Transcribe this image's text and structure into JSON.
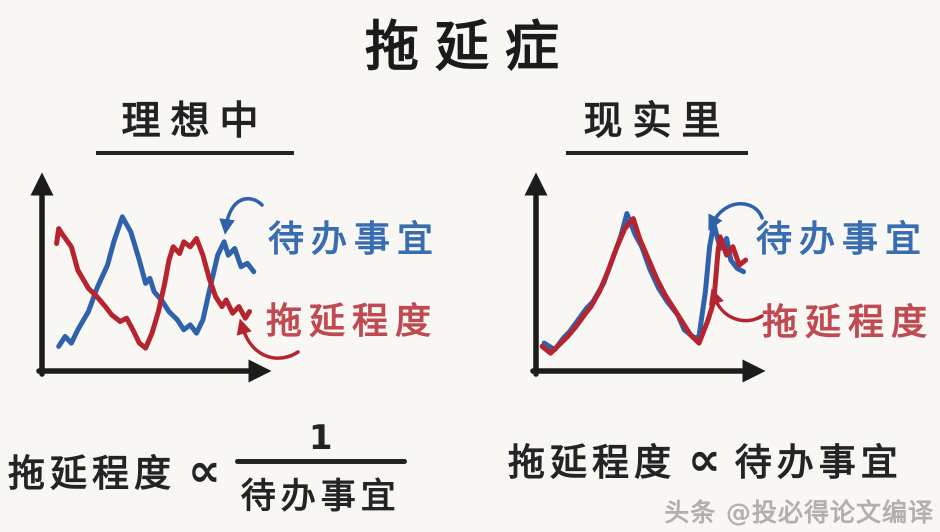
{
  "title": "拖延症",
  "panels": [
    {
      "heading": "理想中",
      "todo_label": "待办事宜",
      "delay_label": "拖延程度"
    },
    {
      "heading": "现实里",
      "todo_label": "待办事宜",
      "delay_label": "拖延程度"
    }
  ],
  "formulas": {
    "ideal": {
      "lhs": "拖延程度",
      "prop": "∝",
      "numerator": "1",
      "denominator": "待办事宜"
    },
    "reality": {
      "lhs": "拖延程度",
      "prop": "∝",
      "rhs": "待办事宜"
    }
  },
  "watermark": "头条 @投必得论文编译",
  "colors": {
    "todo_blue": "#2f62ab",
    "delay_red": "#b5242f",
    "todo_label_blue": "#3a6cb0",
    "delay_label_red": "#c04a52",
    "axis_black": "#1c1c1c",
    "background": "#f8f7f4",
    "watermark_gray": "#b3b0ab"
  },
  "chart_data": [
    {
      "type": "line",
      "title": "理想中",
      "xlabel": "",
      "ylabel": "",
      "axis_range": {
        "x": [
          0,
          100
        ],
        "y": [
          0,
          100
        ]
      },
      "grid": false,
      "legend_position": "right-annotations",
      "relationship": "inverse: 待办事宜 high when 拖延程度 low",
      "series": [
        {
          "name": "待办事宜",
          "color": "#2f62ab",
          "x": [
            6,
            9,
            12,
            15,
            20,
            24,
            29,
            32,
            36,
            40,
            44,
            47,
            49,
            51,
            55,
            58,
            62,
            65,
            68,
            71,
            74,
            77,
            81,
            84,
            86,
            89,
            92,
            95,
            98
          ],
          "y": [
            13,
            19,
            15,
            23,
            34,
            48,
            62,
            76,
            91,
            82,
            65,
            51,
            54,
            46,
            40,
            34,
            29,
            23,
            26,
            21,
            29,
            46,
            68,
            76,
            68,
            72,
            61,
            63,
            58
          ]
        },
        {
          "name": "拖延程度",
          "color": "#b5242f",
          "x": [
            5,
            6,
            8,
            12,
            15,
            20,
            24,
            28,
            31,
            35,
            38,
            41,
            44,
            47,
            50,
            53,
            56,
            58,
            60,
            63,
            65,
            68,
            71,
            74,
            77,
            80,
            83,
            85,
            88,
            91,
            94,
            96
          ],
          "y": [
            75,
            84,
            80,
            73,
            59,
            48,
            43,
            37,
            32,
            28,
            30,
            23,
            15,
            12,
            21,
            34,
            51,
            65,
            73,
            69,
            76,
            73,
            78,
            68,
            54,
            43,
            37,
            41,
            33,
            37,
            30,
            34
          ]
        }
      ]
    },
    {
      "type": "line",
      "title": "现实里",
      "xlabel": "",
      "ylabel": "",
      "axis_range": {
        "x": [
          0,
          100
        ],
        "y": [
          0,
          100
        ]
      },
      "grid": false,
      "legend_position": "right-annotations",
      "relationship": "proportional: both curves rise and fall together",
      "series": [
        {
          "name": "待办事宜",
          "color": "#2f62ab",
          "x": [
            2,
            7,
            11,
            14,
            18,
            22,
            25,
            30,
            34,
            38,
            41,
            45,
            48,
            52,
            56,
            60,
            65,
            68,
            73,
            75,
            78,
            80,
            82,
            85,
            88,
            90,
            93,
            96
          ],
          "y": [
            15,
            11,
            18,
            22,
            29,
            36,
            40,
            51,
            65,
            79,
            93,
            80,
            73,
            59,
            48,
            40,
            32,
            23,
            18,
            19,
            46,
            73,
            87,
            72,
            78,
            65,
            60,
            58
          ]
        },
        {
          "name": "拖延程度",
          "color": "#b5242f",
          "x": [
            1,
            5,
            9,
            13,
            17,
            21,
            24,
            28,
            32,
            36,
            40,
            44,
            47,
            51,
            55,
            59,
            63,
            67,
            71,
            75,
            79,
            82,
            84,
            85,
            88,
            91,
            94,
            97
          ],
          "y": [
            13,
            9,
            14,
            19,
            25,
            32,
            37,
            46,
            58,
            72,
            84,
            90,
            78,
            66,
            54,
            44,
            36,
            28,
            20,
            15,
            28,
            40,
            71,
            79,
            68,
            73,
            62,
            65
          ]
        }
      ]
    }
  ]
}
